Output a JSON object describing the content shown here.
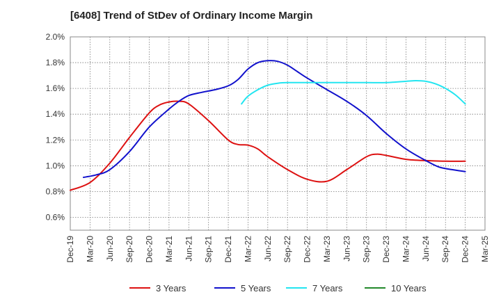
{
  "chart_data": {
    "type": "line",
    "title": "[6408]  Trend of StDev of Ordinary Income Margin",
    "xlabel": "",
    "ylabel": "",
    "x_ticks": [
      "Dec-19",
      "Mar-20",
      "Jun-20",
      "Sep-20",
      "Dec-20",
      "Mar-21",
      "Jun-21",
      "Sep-21",
      "Dec-21",
      "Mar-22",
      "Jun-22",
      "Sep-22",
      "Dec-22",
      "Mar-23",
      "Jun-23",
      "Sep-23",
      "Dec-23",
      "Mar-24",
      "Jun-24",
      "Sep-24",
      "Dec-24",
      "Mar-25"
    ],
    "y_ticks": [
      "0.6%",
      "0.8%",
      "1.0%",
      "1.2%",
      "1.4%",
      "1.6%",
      "1.8%",
      "2.0%"
    ],
    "ylim": [
      0.5,
      2.0
    ],
    "grid": true,
    "legend_position": "bottom",
    "series": [
      {
        "name": "3 Years",
        "color": "#dd1111",
        "points": [
          [
            0,
            0.81
          ],
          [
            1,
            0.87
          ],
          [
            2,
            1.02
          ],
          [
            3,
            1.22
          ],
          [
            4,
            1.41
          ],
          [
            4.5,
            1.47
          ],
          [
            5,
            1.495
          ],
          [
            5.5,
            1.5
          ],
          [
            6,
            1.48
          ],
          [
            7,
            1.35
          ],
          [
            8,
            1.2
          ],
          [
            8.5,
            1.165
          ],
          [
            9,
            1.16
          ],
          [
            9.5,
            1.13
          ],
          [
            10,
            1.07
          ],
          [
            11,
            0.97
          ],
          [
            12,
            0.895
          ],
          [
            13,
            0.88
          ],
          [
            14,
            0.97
          ],
          [
            15,
            1.07
          ],
          [
            15.5,
            1.09
          ],
          [
            16,
            1.08
          ],
          [
            17,
            1.05
          ],
          [
            18,
            1.04
          ],
          [
            19,
            1.035
          ],
          [
            20,
            1.035
          ]
        ]
      },
      {
        "name": "5 Years",
        "color": "#1111cc",
        "points": [
          [
            0.67,
            0.91
          ],
          [
            1.33,
            0.93
          ],
          [
            2,
            0.97
          ],
          [
            3,
            1.11
          ],
          [
            4,
            1.3
          ],
          [
            5,
            1.44
          ],
          [
            5.5,
            1.5
          ],
          [
            6,
            1.545
          ],
          [
            6.67,
            1.57
          ],
          [
            7.33,
            1.59
          ],
          [
            8,
            1.62
          ],
          [
            8.5,
            1.67
          ],
          [
            9,
            1.75
          ],
          [
            9.5,
            1.8
          ],
          [
            10,
            1.815
          ],
          [
            10.5,
            1.81
          ],
          [
            11,
            1.78
          ],
          [
            11.5,
            1.73
          ],
          [
            12,
            1.68
          ],
          [
            13,
            1.59
          ],
          [
            14,
            1.5
          ],
          [
            15,
            1.39
          ],
          [
            16,
            1.25
          ],
          [
            17,
            1.13
          ],
          [
            18,
            1.04
          ],
          [
            18.67,
            0.99
          ],
          [
            19.33,
            0.97
          ],
          [
            20,
            0.955
          ]
        ]
      },
      {
        "name": "7 Years",
        "color": "#22e5f0",
        "points": [
          [
            8.67,
            1.48
          ],
          [
            9,
            1.54
          ],
          [
            9.5,
            1.59
          ],
          [
            10,
            1.625
          ],
          [
            10.5,
            1.64
          ],
          [
            11,
            1.645
          ],
          [
            12,
            1.645
          ],
          [
            13,
            1.645
          ],
          [
            14,
            1.645
          ],
          [
            15,
            1.645
          ],
          [
            16,
            1.645
          ],
          [
            17,
            1.655
          ],
          [
            17.5,
            1.66
          ],
          [
            18,
            1.655
          ],
          [
            18.5,
            1.635
          ],
          [
            19,
            1.6
          ],
          [
            19.5,
            1.55
          ],
          [
            20,
            1.48
          ]
        ]
      },
      {
        "name": "10 Years",
        "color": "#22882a",
        "points": []
      }
    ]
  }
}
